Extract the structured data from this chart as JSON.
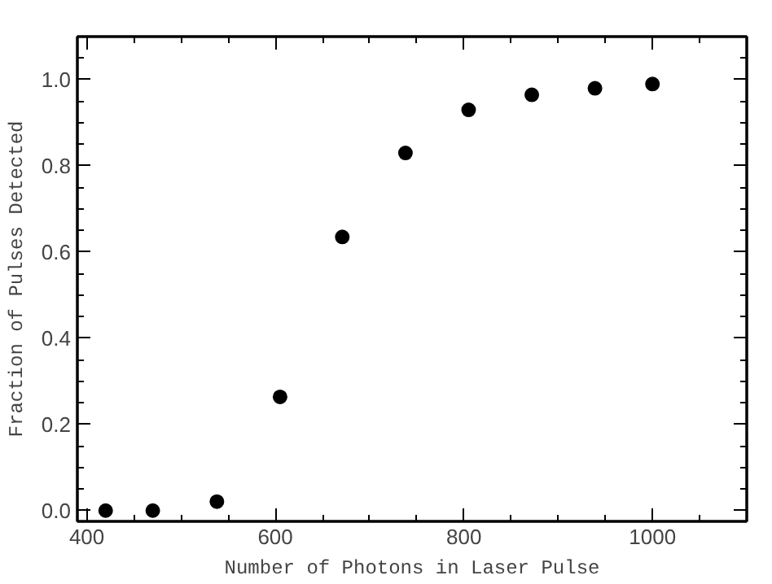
{
  "chart_data": {
    "type": "scatter",
    "xlabel": "Number of Photons in Laser Pulse",
    "ylabel": "Fraction of Pulses Detected",
    "x": [
      420,
      470,
      538,
      605,
      671,
      738,
      805,
      872,
      939,
      1000
    ],
    "series": [
      {
        "color": "#000000",
        "values": [
          0.0,
          0.0,
          0.021,
          0.264,
          0.635,
          0.83,
          0.93,
          0.965,
          0.98,
          0.99
        ]
      }
    ],
    "xlim": [
      390,
      1100
    ],
    "ylim": [
      -0.025,
      1.1
    ],
    "xticks": [
      400,
      600,
      800,
      1000
    ],
    "yticks": [
      {
        "value": 0,
        "label": "0.0"
      },
      {
        "value": 0.2,
        "label": "0.2"
      },
      {
        "value": 0.4,
        "label": "0.4"
      },
      {
        "value": 0.6,
        "label": "0.6"
      },
      {
        "value": 0.8,
        "label": "0.8"
      },
      {
        "value": 1.0,
        "label": "1.0"
      }
    ],
    "marker": "circle",
    "grid": false
  }
}
